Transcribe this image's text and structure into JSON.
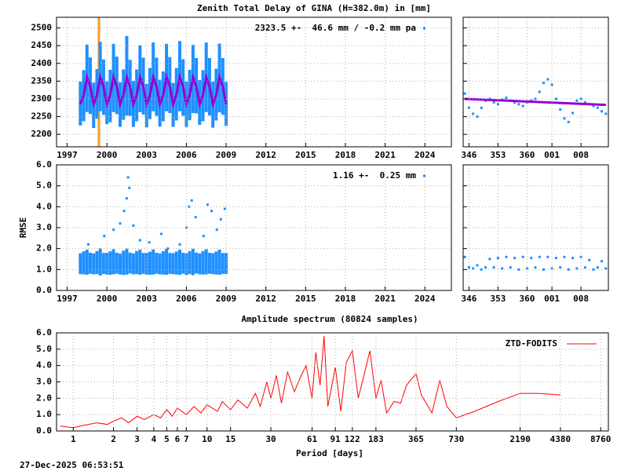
{
  "timestamp": "27-Dec-2025 06:53:51",
  "chart_data": [
    {
      "type": "scatter",
      "title": "Zenith Total Delay of GINA (H=382.0m) in [mm]",
      "xlim": [
        1996.2,
        2026
      ],
      "xticks": [
        1997,
        2000,
        2003,
        2006,
        2009,
        2012,
        2015,
        2018,
        2021,
        2024
      ],
      "ylim": [
        2165,
        2530
      ],
      "yticks": [
        2200,
        2250,
        2300,
        2350,
        2400,
        2450,
        2500
      ],
      "grid": true,
      "vline": {
        "x": 1999.4,
        "color": "#f39c2b"
      },
      "series": [
        {
          "name": "2323.5 +-  46.6 mm / -0.2 mm pa",
          "color": "#1e90ff",
          "style": "errorbar",
          "x": [
            1998,
            1998.25,
            1998.5,
            1998.75,
            1999,
            1999.25,
            1999.5,
            1999.75,
            2000,
            2000.25,
            2000.5,
            2000.75,
            2001,
            2001.25,
            2001.5,
            2001.75,
            2002,
            2002.25,
            2002.5,
            2002.75,
            2003,
            2003.25,
            2003.5,
            2003.75,
            2004,
            2004.25,
            2004.5,
            2004.75,
            2005,
            2005.25,
            2005.5,
            2005.75,
            2006,
            2006.25,
            2006.5,
            2006.75,
            2007,
            2007.25,
            2007.5,
            2007.75,
            2008,
            2008.25,
            2008.5,
            2008.75,
            2009
          ],
          "values": [
            2287,
            2309,
            2358,
            2337,
            2282,
            2314,
            2363,
            2333,
            2289,
            2308,
            2359,
            2338,
            2284,
            2312,
            2365,
            2331,
            2286,
            2310,
            2357,
            2336,
            2281,
            2315,
            2362,
            2334,
            2288,
            2307,
            2360,
            2339,
            2283,
            2313,
            2364,
            2332,
            2285,
            2311,
            2356,
            2337,
            2290,
            2309,
            2361,
            2334,
            2284,
            2312,
            2359,
            2335,
            2286
          ],
          "errors": [
            62,
            72,
            95,
            80,
            64,
            70,
            98,
            78,
            60,
            74,
            96,
            81,
            63,
            71,
            112,
            79,
            65,
            73,
            94,
            80,
            61,
            72,
            97,
            82,
            66,
            70,
            95,
            79,
            62,
            74,
            99,
            80,
            64,
            71,
            96,
            78,
            63,
            72,
            98,
            81,
            65,
            73,
            97,
            80,
            62
          ]
        },
        {
          "color": "#9400d3",
          "style": "line",
          "x": [
            1998,
            1998.25,
            1998.5,
            1998.75,
            1999,
            1999.25,
            1999.5,
            1999.75,
            2000,
            2000.25,
            2000.5,
            2000.75,
            2001,
            2001.25,
            2001.5,
            2001.75,
            2002,
            2002.25,
            2002.5,
            2002.75,
            2003,
            2003.25,
            2003.5,
            2003.75,
            2004,
            2004.25,
            2004.5,
            2004.75,
            2005,
            2005.25,
            2005.5,
            2005.75,
            2006,
            2006.25,
            2006.5,
            2006.75,
            2007,
            2007.25,
            2007.5,
            2007.75,
            2008,
            2008.25,
            2008.5,
            2008.75,
            2009
          ],
          "values": [
            2285,
            2311,
            2361,
            2335,
            2285,
            2311,
            2361,
            2335,
            2285,
            2311,
            2361,
            2335,
            2285,
            2311,
            2361,
            2335,
            2285,
            2311,
            2361,
            2335,
            2285,
            2311,
            2361,
            2335,
            2285,
            2311,
            2361,
            2335,
            2285,
            2311,
            2361,
            2335,
            2285,
            2311,
            2361,
            2335,
            2285,
            2311,
            2361,
            2335,
            2285,
            2311,
            2361,
            2335,
            2285
          ]
        }
      ]
    },
    {
      "type": "scatter",
      "xlim": [
        344.6,
        379.6
      ],
      "xticks": [
        346,
        353,
        360,
        {
          "value": 366,
          "label": "001"
        },
        {
          "value": 373,
          "label": "008"
        }
      ],
      "ylim": [
        2165,
        2530
      ],
      "yticks": [
        2200,
        2250,
        2300,
        2350,
        2400,
        2450,
        2500
      ],
      "ytick_labels": false,
      "grid": true,
      "series": [
        {
          "color": "#1e90ff",
          "style": "points",
          "x": [
            345,
            346,
            347,
            348,
            349,
            350,
            351,
            352,
            353,
            354,
            355,
            356,
            357,
            358,
            359,
            360,
            361,
            362,
            363,
            364,
            365,
            366,
            367,
            368,
            369,
            370,
            371,
            372,
            373,
            374,
            375,
            376,
            377,
            378,
            379
          ],
          "values": [
            2315,
            2275,
            2258,
            2250,
            2275,
            2295,
            2300,
            2290,
            2285,
            2298,
            2303,
            2295,
            2290,
            2285,
            2280,
            2290,
            2295,
            2300,
            2320,
            2345,
            2355,
            2340,
            2300,
            2270,
            2245,
            2235,
            2260,
            2295,
            2300,
            2290,
            2285,
            2280,
            2275,
            2265,
            2258
          ]
        },
        {
          "color": "#9400d3",
          "style": "line",
          "x": [
            345,
            379
          ],
          "values": [
            2300,
            2283
          ]
        }
      ]
    },
    {
      "type": "scatter",
      "ylabel": "RMSE",
      "xlim": [
        1996.2,
        2026
      ],
      "xticks": [
        1997,
        2000,
        2003,
        2006,
        2009,
        2012,
        2015,
        2018,
        2021,
        2024
      ],
      "ylim": [
        0,
        6
      ],
      "yticks": [
        {
          "value": 0,
          "label": "0.0"
        },
        {
          "value": 1,
          "label": "1.0"
        },
        {
          "value": 2,
          "label": "2.0"
        },
        {
          "value": 3,
          "label": "3.0"
        },
        {
          "value": 4,
          "label": "4.0"
        },
        {
          "value": 5,
          "label": "5.0"
        },
        {
          "value": 6,
          "label": "6.0"
        }
      ],
      "grid": true,
      "series": [
        {
          "name": "1.16 +-  0.25 mm",
          "color": "#1e90ff",
          "style": "errorbar",
          "x": [
            1998,
            1998.25,
            1998.5,
            1998.75,
            1999,
            1999.25,
            1999.5,
            1999.75,
            2000,
            2000.25,
            2000.5,
            2000.75,
            2001,
            2001.25,
            2001.5,
            2001.75,
            2002,
            2002.25,
            2002.5,
            2002.75,
            2003,
            2003.25,
            2003.5,
            2003.75,
            2004,
            2004.25,
            2004.5,
            2004.75,
            2005,
            2005.25,
            2005.5,
            2005.75,
            2006,
            2006.25,
            2006.5,
            2006.75,
            2007,
            2007.25,
            2007.5,
            2007.75,
            2008,
            2008.25,
            2008.5,
            2008.75,
            2009
          ],
          "values": [
            1.28,
            1.32,
            1.35,
            1.3,
            1.27,
            1.33,
            1.36,
            1.29,
            1.28,
            1.31,
            1.37,
            1.3,
            1.26,
            1.32,
            1.38,
            1.31,
            1.27,
            1.33,
            1.35,
            1.29,
            1.28,
            1.3,
            1.36,
            1.3,
            1.27,
            1.32,
            1.37,
            1.29,
            1.28,
            1.31,
            1.35,
            1.3,
            1.26,
            1.33,
            1.36,
            1.31,
            1.27,
            1.32,
            1.37,
            1.3,
            1.28,
            1.31,
            1.35,
            1.29,
            1.29
          ],
          "errors": [
            0.5,
            0.55,
            0.6,
            0.5,
            0.5,
            0.55,
            0.65,
            0.5,
            0.52,
            0.56,
            0.6,
            0.5,
            0.5,
            0.58,
            0.62,
            0.5,
            0.5,
            0.55,
            0.6,
            0.5,
            0.52,
            0.55,
            0.6,
            0.5,
            0.5,
            0.56,
            0.62,
            0.5,
            0.5,
            0.55,
            0.6,
            0.5,
            0.52,
            0.55,
            0.63,
            0.5,
            0.5,
            0.56,
            0.6,
            0.5,
            0.5,
            0.55,
            0.6,
            0.5,
            0.5
          ]
        },
        {
          "color": "#1e90ff",
          "style": "points",
          "x": [
            1998.6,
            1999.8,
            2000.5,
            2001.0,
            2001.3,
            2001.5,
            2001.6,
            2001.7,
            2002.0,
            2002.5,
            2003.2,
            2004.1,
            2004.6,
            2005.5,
            2006.0,
            2006.2,
            2006.4,
            2006.7,
            2007.3,
            2007.6,
            2007.9,
            2008.3,
            2008.6,
            2008.9
          ],
          "values": [
            2.2,
            2.6,
            2.9,
            3.2,
            3.8,
            4.4,
            5.4,
            4.9,
            3.1,
            2.4,
            2.3,
            2.7,
            2.0,
            2.2,
            3.0,
            4.0,
            4.3,
            3.5,
            2.6,
            4.1,
            3.8,
            2.9,
            3.4,
            3.9
          ]
        }
      ]
    },
    {
      "type": "scatter",
      "xlim": [
        344.6,
        379.6
      ],
      "xticks": [
        346,
        353,
        360,
        {
          "value": 366,
          "label": "001"
        },
        {
          "value": 373,
          "label": "008"
        }
      ],
      "ylim": [
        0,
        6
      ],
      "yticks": [
        0,
        1,
        2,
        3,
        4,
        5,
        6
      ],
      "ytick_labels": false,
      "grid": true,
      "series": [
        {
          "color": "#1e90ff",
          "style": "points",
          "x": [
            345,
            346,
            347,
            348,
            349,
            350,
            351,
            352,
            353,
            354,
            355,
            356,
            357,
            358,
            359,
            360,
            361,
            362,
            363,
            364,
            365,
            366,
            367,
            368,
            369,
            370,
            371,
            372,
            373,
            374,
            375,
            376,
            377,
            378,
            379
          ],
          "values": [
            1.6,
            1.1,
            1.05,
            1.2,
            1.0,
            1.1,
            1.5,
            1.1,
            1.55,
            1.05,
            1.6,
            1.1,
            1.55,
            1.0,
            1.6,
            1.05,
            1.55,
            1.1,
            1.6,
            1.0,
            1.6,
            1.05,
            1.55,
            1.1,
            1.6,
            1.0,
            1.55,
            1.05,
            1.6,
            1.1,
            1.45,
            1.0,
            1.1,
            1.4,
            1.05
          ]
        }
      ]
    },
    {
      "type": "line",
      "title": "Amplitude spectrum (80824 samples)",
      "xlabel": "Period [days]",
      "xlog": true,
      "xlim": [
        0.75,
        10000
      ],
      "xticks": [
        1,
        2,
        3,
        4,
        5,
        6,
        7,
        10,
        15,
        30,
        61,
        91,
        122,
        183,
        365,
        730,
        2190,
        4380,
        8760
      ],
      "ylim": [
        0,
        6
      ],
      "yticks": [
        {
          "value": 0,
          "label": "0.0"
        },
        {
          "value": 1,
          "label": "1.0"
        },
        {
          "value": 2,
          "label": "2.0"
        },
        {
          "value": 3,
          "label": "3.0"
        },
        {
          "value": 4,
          "label": "4.0"
        },
        {
          "value": 5,
          "label": "5.0"
        },
        {
          "value": 6,
          "label": "6.0"
        }
      ],
      "grid": true,
      "series": [
        {
          "name": "ZTD-FODITS",
          "color": "#ff0000",
          "style": "line",
          "x": [
            0.8,
            1,
            1.2,
            1.5,
            1.8,
            2,
            2.3,
            2.6,
            3,
            3.4,
            4,
            4.5,
            5,
            5.5,
            6,
            7,
            8,
            9,
            10,
            12,
            13,
            15,
            17,
            20,
            23,
            25,
            28,
            30,
            33,
            36,
            40,
            45,
            50,
            55,
            61,
            65,
            70,
            75,
            80,
            91,
            100,
            110,
            122,
            135,
            150,
            165,
            183,
            200,
            220,
            250,
            280,
            310,
            365,
            400,
            480,
            550,
            620,
            730,
            1000,
            1500,
            2190,
            3000,
            4380
          ],
          "values": [
            0.3,
            0.2,
            0.35,
            0.5,
            0.4,
            0.6,
            0.8,
            0.5,
            0.9,
            0.7,
            1.0,
            0.8,
            1.3,
            0.9,
            1.4,
            1.0,
            1.5,
            1.1,
            1.6,
            1.2,
            1.8,
            1.3,
            1.9,
            1.4,
            2.3,
            1.5,
            3.0,
            2.0,
            3.4,
            1.7,
            3.6,
            2.4,
            3.3,
            4.0,
            2.0,
            4.8,
            2.8,
            5.8,
            1.5,
            3.9,
            1.2,
            4.2,
            4.9,
            2.0,
            3.5,
            4.9,
            2.0,
            3.1,
            1.1,
            1.8,
            1.7,
            2.8,
            3.5,
            2.2,
            1.1,
            3.1,
            1.5,
            0.8,
            1.2,
            1.8,
            2.3,
            2.3,
            2.2
          ]
        }
      ]
    }
  ]
}
